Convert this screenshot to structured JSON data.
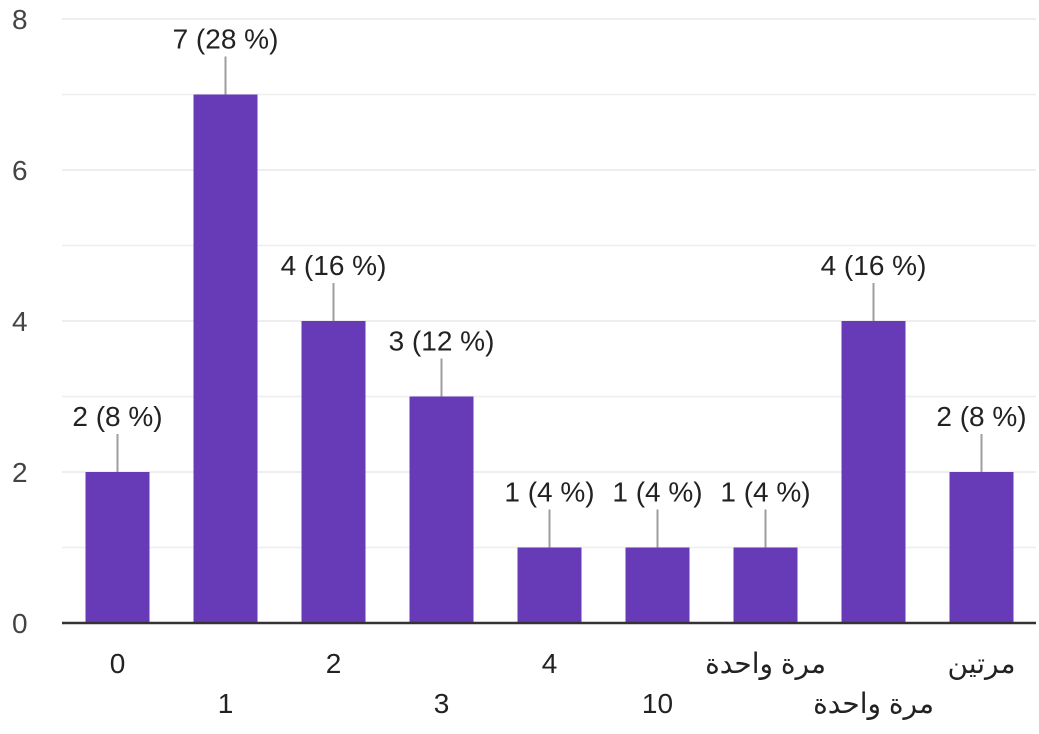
{
  "chart_data": {
    "type": "bar",
    "categories": [
      "0",
      "1",
      "2",
      "3",
      "4",
      "10",
      "مرة واحدة",
      "مرة واحدة",
      "مرتين"
    ],
    "values": [
      2,
      7,
      4,
      3,
      1,
      1,
      1,
      4,
      2
    ],
    "data_labels": [
      "2 (8 %)",
      "7 (28 %)",
      "4 (16 %)",
      "3 (12 %)",
      "1 (4 %)",
      "1 (4 %)",
      "1 (4 %)",
      "4 (16 %)",
      "2 (8 %)"
    ],
    "ylim": [
      0,
      8
    ],
    "y_ticks": [
      "0",
      "2",
      "4",
      "6",
      "8"
    ],
    "grid": true,
    "title": "",
    "xlabel": "",
    "ylabel": "",
    "colors": {
      "bar": "#673AB7",
      "grid": "#eeeeee",
      "axis": "#333333",
      "leader": "#9e9e9e"
    }
  }
}
